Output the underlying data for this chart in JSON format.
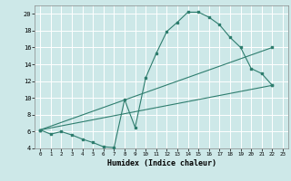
{
  "title": "",
  "xlabel": "Humidex (Indice chaleur)",
  "background_color": "#cde8e8",
  "grid_color": "#ffffff",
  "line_color": "#2e7d6e",
  "xlim": [
    -0.5,
    23.5
  ],
  "ylim": [
    4,
    21
  ],
  "yticks": [
    4,
    6,
    8,
    10,
    12,
    14,
    16,
    18,
    20
  ],
  "xticks": [
    0,
    1,
    2,
    3,
    4,
    5,
    6,
    7,
    8,
    9,
    10,
    11,
    12,
    13,
    14,
    15,
    16,
    17,
    18,
    19,
    20,
    21,
    22,
    23
  ],
  "line1_x": [
    0,
    1,
    2,
    3,
    4,
    5,
    6,
    7,
    8,
    9,
    10,
    11,
    12,
    13,
    14,
    15,
    16,
    17,
    18,
    19,
    20,
    21,
    22
  ],
  "line1_y": [
    6.2,
    5.7,
    6.0,
    5.6,
    5.1,
    4.7,
    4.2,
    4.1,
    9.8,
    6.5,
    12.4,
    15.3,
    17.9,
    19.0,
    20.2,
    20.2,
    19.6,
    18.7,
    17.2,
    16.0,
    13.5,
    12.9,
    11.5
  ],
  "line2_x": [
    0,
    22
  ],
  "line2_y": [
    6.2,
    11.5
  ],
  "line3_x": [
    0,
    22
  ],
  "line3_y": [
    6.2,
    16.0
  ]
}
